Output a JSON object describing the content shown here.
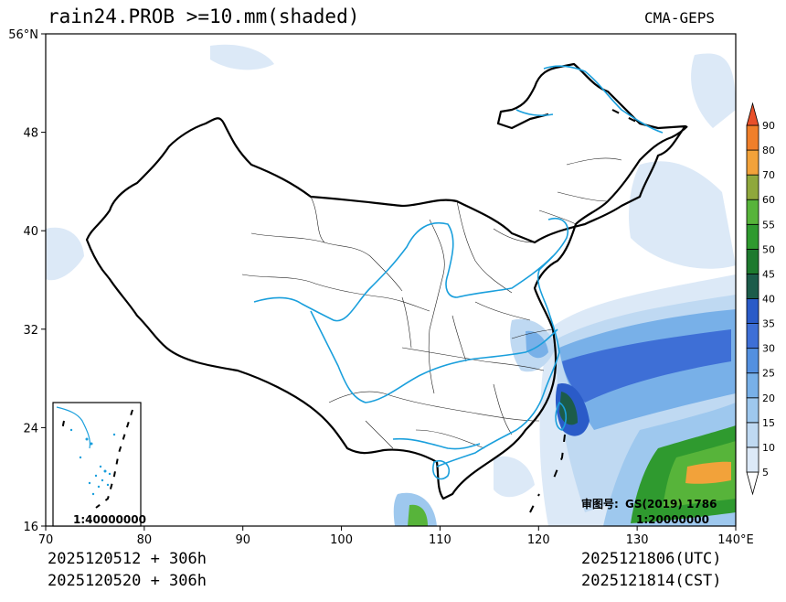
{
  "header": {
    "title": "rain24.PROB >=10.mm(shaded)",
    "source": "CMA-GEPS"
  },
  "footer": {
    "init_utc": "2025120512 + 306h",
    "init_cst": "2025120520 + 306h",
    "valid_utc": "2025121806(UTC)",
    "valid_cst": "2025121814(CST)"
  },
  "axes": {
    "lat_labels": [
      "56°N",
      "48",
      "40",
      "32",
      "24",
      "16"
    ],
    "lon_labels": [
      "70",
      "80",
      "90",
      "100",
      "110",
      "120",
      "130",
      "140°E"
    ],
    "lat_values": [
      56,
      48,
      40,
      32,
      24,
      16
    ],
    "lon_values": [
      70,
      80,
      90,
      100,
      110,
      120,
      130,
      140
    ]
  },
  "colorbar": {
    "levels": [
      "5",
      "10",
      "15",
      "20",
      "25",
      "30",
      "35",
      "40",
      "45",
      "50",
      "55",
      "60",
      "70",
      "80",
      "90"
    ],
    "colors": [
      "#ffffff",
      "#dce9f7",
      "#bfd9f2",
      "#9ec8ee",
      "#78b0e8",
      "#5390e0",
      "#3e6fd6",
      "#2a5bc8",
      "#1c5c4a",
      "#1e7a2e",
      "#2f9a2f",
      "#57b43a",
      "#8fa83c",
      "#f2a23a",
      "#f07f2a",
      "#e8502a"
    ]
  },
  "annotations": {
    "inset_scale": "1:40000000",
    "review_label": "审图号:",
    "review_number": "GS(2019) 1786",
    "map_scale": "1:20000000"
  },
  "colors": {
    "river": "#1a9fdc",
    "border": "#000000",
    "province": "#000000"
  }
}
